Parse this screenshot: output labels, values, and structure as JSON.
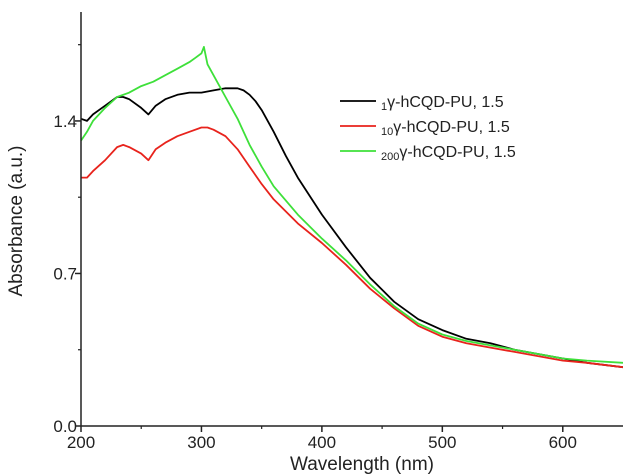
{
  "chart_data": {
    "type": "line",
    "xlabel": "Wavelength (nm)",
    "ylabel": "Absorbance (a.u.)",
    "xlim": [
      200,
      650
    ],
    "ylim": [
      0,
      1.9
    ],
    "xticks": [
      200,
      300,
      400,
      500,
      600
    ],
    "xtick_labels": [
      "200",
      "300",
      "400",
      "500",
      "600"
    ],
    "yticks": [
      0.0,
      0.7,
      1.4
    ],
    "ytick_labels": [
      "0.0",
      "0.7",
      "1.4"
    ],
    "grid": false,
    "legend_position": "top-right",
    "series": [
      {
        "name": "1γ-hCQD-PU, 1.5",
        "legend_sub": "1",
        "legend_main": "γ-hCQD-PU, 1.5",
        "color": "#000000",
        "x": [
          200,
          205,
          210,
          220,
          230,
          235,
          240,
          250,
          256,
          262,
          270,
          280,
          290,
          300,
          310,
          320,
          325,
          330,
          335,
          340,
          345,
          350,
          360,
          370,
          380,
          400,
          420,
          440,
          460,
          480,
          500,
          520,
          540,
          560,
          580,
          600,
          620,
          650
        ],
        "y": [
          1.41,
          1.4,
          1.43,
          1.47,
          1.51,
          1.51,
          1.5,
          1.46,
          1.43,
          1.47,
          1.5,
          1.52,
          1.53,
          1.53,
          1.54,
          1.55,
          1.55,
          1.55,
          1.54,
          1.52,
          1.49,
          1.45,
          1.35,
          1.24,
          1.14,
          0.97,
          0.82,
          0.68,
          0.57,
          0.49,
          0.44,
          0.4,
          0.38,
          0.35,
          0.33,
          0.31,
          0.29,
          0.27
        ]
      },
      {
        "name": "10γ-hCQD-PU, 1.5",
        "legend_sub": "10",
        "legend_main": "γ-hCQD-PU, 1.5",
        "color": "#e8231c",
        "x": [
          200,
          205,
          210,
          220,
          230,
          235,
          240,
          250,
          256,
          262,
          270,
          280,
          290,
          300,
          305,
          310,
          320,
          330,
          340,
          350,
          360,
          380,
          400,
          420,
          440,
          460,
          480,
          500,
          520,
          540,
          560,
          580,
          600,
          620,
          650
        ],
        "y": [
          1.14,
          1.14,
          1.17,
          1.22,
          1.28,
          1.29,
          1.28,
          1.25,
          1.22,
          1.27,
          1.3,
          1.33,
          1.35,
          1.37,
          1.37,
          1.36,
          1.33,
          1.27,
          1.19,
          1.11,
          1.04,
          0.93,
          0.84,
          0.74,
          0.63,
          0.54,
          0.46,
          0.41,
          0.38,
          0.36,
          0.34,
          0.32,
          0.3,
          0.29,
          0.27
        ]
      },
      {
        "name": "200γ-hCQD-PU, 1.5",
        "legend_sub": "200",
        "legend_main": "γ-hCQD-PU, 1.5",
        "color": "#3ee03a",
        "x": [
          200,
          205,
          210,
          220,
          230,
          240,
          250,
          260,
          270,
          280,
          290,
          295,
          300,
          302,
          305,
          310,
          320,
          330,
          340,
          350,
          360,
          380,
          400,
          420,
          440,
          460,
          480,
          500,
          520,
          540,
          560,
          580,
          600,
          620,
          650
        ],
        "y": [
          1.31,
          1.35,
          1.4,
          1.46,
          1.51,
          1.53,
          1.56,
          1.58,
          1.61,
          1.64,
          1.67,
          1.69,
          1.71,
          1.74,
          1.66,
          1.61,
          1.51,
          1.41,
          1.29,
          1.19,
          1.1,
          0.97,
          0.86,
          0.76,
          0.65,
          0.55,
          0.47,
          0.42,
          0.39,
          0.37,
          0.35,
          0.33,
          0.31,
          0.3,
          0.29
        ]
      }
    ]
  }
}
